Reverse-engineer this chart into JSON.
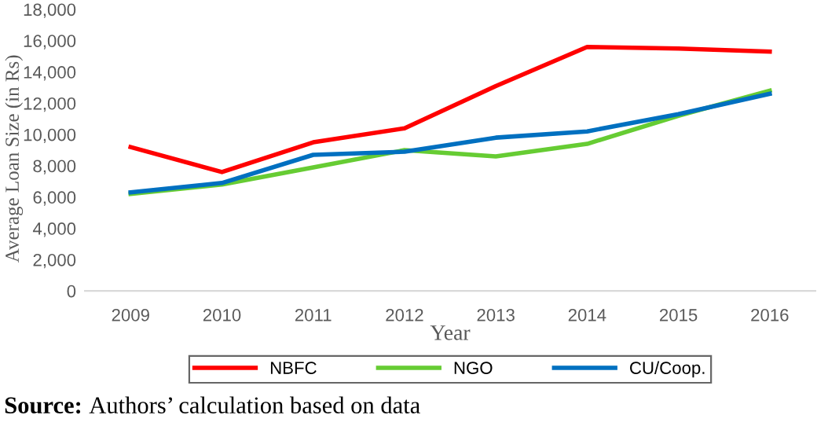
{
  "chart_data": {
    "type": "line",
    "xlabel": "Year",
    "ylabel": "Average Loan Size (in Rs)",
    "categories": [
      "2009",
      "2010",
      "2011",
      "2012",
      "2013",
      "2014",
      "2015",
      "2016"
    ],
    "series": [
      {
        "name": "NBFC",
        "color": "#ff0000",
        "values": [
          9200,
          7600,
          9500,
          10400,
          13100,
          15600,
          15500,
          15300
        ]
      },
      {
        "name": "NGO",
        "color": "#66cc33",
        "values": [
          6200,
          6800,
          7900,
          9000,
          8600,
          9400,
          11200,
          12800
        ]
      },
      {
        "name": "CU/Coop.",
        "color": "#0070c0",
        "values": [
          6300,
          6900,
          8700,
          8900,
          9800,
          10200,
          11300,
          12600
        ]
      }
    ],
    "ylim": [
      0,
      18000
    ],
    "yticks": [
      {
        "value": 0,
        "label": "0"
      },
      {
        "value": 2000,
        "label": "2,000"
      },
      {
        "value": 4000,
        "label": "4,000"
      },
      {
        "value": 6000,
        "label": "6,000"
      },
      {
        "value": 8000,
        "label": "8,000"
      },
      {
        "value": 10000,
        "label": "10,000"
      },
      {
        "value": 12000,
        "label": "12,000"
      },
      {
        "value": 14000,
        "label": "14,000"
      },
      {
        "value": 16000,
        "label": "16,000"
      },
      {
        "value": 18000,
        "label": "18,000"
      }
    ],
    "grid": false,
    "legend": "bottom",
    "marker": "none",
    "line_style": "solid",
    "annotations": [
      "Source: Authors’ calculation based on data"
    ]
  }
}
